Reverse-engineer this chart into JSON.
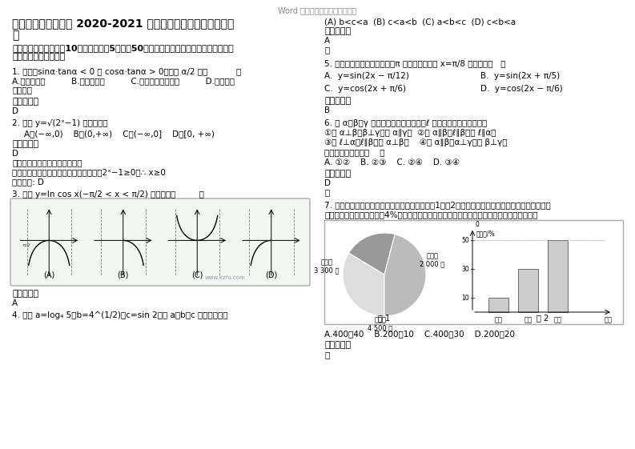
{
  "bg_color": "#ffffff",
  "header_color": "#888888",
  "text_color": "#000000",
  "answer_bold_color": "#000000",
  "graph_bg": "#f0f8f0",
  "graph_border": "#aaaaaa",
  "watermark_color": "#9999bb",
  "title_header": "Word 文档下载后（可任意编辑）",
  "title_main_line1": "北京怀柔县北房中学 2020-2021 学年高一数学文月考试题含解",
  "title_main_line2": "析",
  "section_header": "一、选择题：本大题入10小题，每小题5分，入50分。在每小题给出的四个选项中，只有",
  "section_header2": "是一个符合题目要求的",
  "q1": "1. 如果：sinα·tanα < 0 且 cosα·tanα > 0，则角 α/2 为（           ）",
  "q1_opts": "A.第一象限角          B.第二象限角          C.第一或第二象限角          D.第一或第",
  "q1_opts2": "三象限角",
  "ans_header": "参考答案：",
  "q2": "2. 函数 y=√(2ˣ−1) 的定义域是",
  "q2_opts": "A、(−∞,0)    B、(0,+∞)    C、(−∞,0]    D、[0, +∞)",
  "kn2": "【知识点】函数的定义域与値域",
  "analysis2": "【试题解析】要使函数有意义，需满足：2ˣ−1≥0，∴ x≥0",
  "ans2_text": "故答案为: D",
  "q3": "3. 函数 y=ln cos x(−π/2 < x < π/2) 的图象是（         ）",
  "ans3": "A",
  "q4": "4. 已知 a=log₄ 5，b=4^(1/2)，c=sin 2，则 a、b、c 的大小关系是",
  "r_q4opts": "(A) b<c<a  (B) c<a<b  (C) a<b<c  (D) c<b<a",
  "r_ans4": "A",
  "r_lue": "略",
  "q5_text": "5. 下列函数中，最小正周期为π 且图像关于直线 x=π/8 对称的是（   ）",
  "q5_optA": "A.  y=sin(2x − π/12)",
  "q5_optB": "B.  y=sin(2x + π/5)",
  "q5_optC": "C.  y=cos(2x + π/6)",
  "q5_optD": "D.  y=cos(2x − π/6)",
  "q5_ans": "B",
  "q6_text": "6. 设 α、β、γ 是三个互不重合的平面，ℓ 是直线，给出下列命题：",
  "q6_1": "①若 α⊥β，β⊥γ，则 α∥γ；  ②若 α∥β，ℓ∥β，则 ℓ∥α，",
  "q6_2": "③若 ℓ⊥α，ℓ∥β，则 α⊥β；    ④若 α∥β，α⊥γ，则 β⊥γ。",
  "q6_3": "其中正确的命题是（    ）",
  "q6_opts": "A. ①②    B. ②③    C. ②④    D. ③④",
  "q6_ans": "D",
  "q7_text": "7. 已知某地区中小学生人数和近视情况分别如图1和图2所示。为了解该地区中小学生的近视形成原",
  "q7_text2": "因，用分层抖样的方法抜厖4%的学生进行调查，则样本容量和抜取的高中生近视人数分别为）",
  "q7_opts": "A.400　40    B.200　10    C.400　30    D.200　20",
  "q7_ans_lue": "略",
  "pie_label1": "小学生\n3 300 名",
  "pie_label2": "高中生\n2 000 名",
  "pie_label3": "初中生\n4 500 名",
  "bar_ylabel": "近视率/%",
  "bar_cats": [
    "小学",
    "初中",
    "高中",
    "年级"
  ],
  "bar_vals": [
    10,
    30,
    50,
    0
  ],
  "bar_50_label": "50",
  "bar_30_label": "30",
  "bar_10_label": "10",
  "fig1_label": "图 1",
  "fig2_label": "图 2"
}
